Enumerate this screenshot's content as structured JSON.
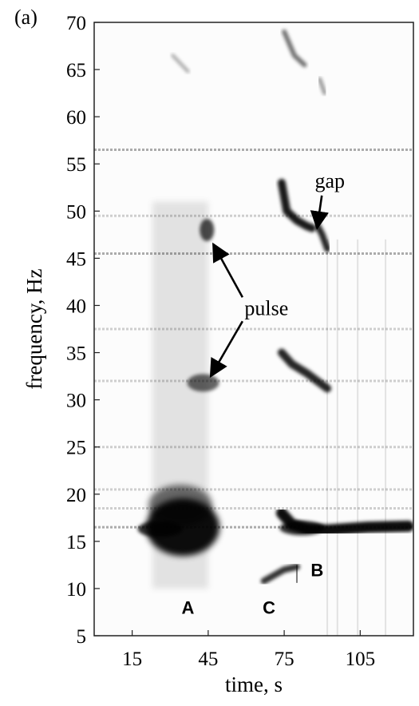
{
  "panel_label": "(a)",
  "chart_data": {
    "type": "heatmap",
    "xlabel": "time, s",
    "ylabel": "frequency, Hz",
    "xlim": [
      0,
      126
    ],
    "ylim": [
      5,
      70
    ],
    "xticks": [
      15,
      45,
      75,
      105
    ],
    "yticks": [
      5,
      10,
      15,
      20,
      25,
      30,
      35,
      40,
      45,
      50,
      55,
      60,
      65,
      70
    ],
    "grid": false,
    "colormap": "grayscale, darker = higher intensity",
    "horizontal_noise_lines_hz": [
      16.5,
      18.5,
      20.5,
      25,
      32,
      37.5,
      45.5,
      49.5,
      56.5
    ],
    "features": [
      {
        "label": "A",
        "label_at": [
          37,
          8
        ],
        "description_type": "broadband harmonic signal",
        "time_range": [
          23,
          45
        ],
        "freq_range": [
          10,
          51
        ],
        "fundamental_hz": 16.5,
        "harmonic_spacing_hz": 1.6
      },
      {
        "label": "B",
        "label_at": [
          88,
          12
        ],
        "description_type": "downswept harmonics",
        "time_range": [
          74,
          92
        ],
        "tracks": [
          {
            "name": "h1",
            "points": [
              [
                74,
                18
              ],
              [
                78,
                16.8
              ],
              [
                84,
                16.3
              ],
              [
                92,
                16.2
              ],
              [
                108,
                16.5
              ],
              [
                124,
                16.6
              ]
            ]
          },
          {
            "name": "h2",
            "points": [
              [
                74,
                35
              ],
              [
                78,
                33.8
              ],
              [
                84,
                32.8
              ],
              [
                88,
                32.0
              ],
              [
                92,
                31.2
              ]
            ]
          },
          {
            "name": "h3",
            "points": [
              [
                74,
                53
              ],
              [
                76,
                50
              ],
              [
                80,
                49
              ],
              [
                84,
                48.4
              ],
              [
                86,
                48.2
              ]
            ]
          },
          {
            "name": "h3b",
            "points": [
              [
                88,
                48.5
              ],
              [
                90,
                47.5
              ],
              [
                92,
                46.0
              ]
            ]
          }
        ]
      },
      {
        "label": "C",
        "label_at": [
          69,
          8
        ],
        "description_type": "short tonal",
        "tracks": [
          {
            "name": "c1",
            "points": [
              [
                67,
                10.8
              ],
              [
                71,
                11.4
              ],
              [
                75,
                12.0
              ],
              [
                80,
                12.3
              ]
            ]
          }
        ]
      },
      {
        "label": "",
        "description_type": "faint upper tonals",
        "tracks": [
          {
            "name": "u1",
            "points": [
              [
                31,
                66.5
              ],
              [
                37,
                64.8
              ]
            ]
          },
          {
            "name": "u2",
            "points": [
              [
                75,
                69
              ],
              [
                79,
                66.5
              ],
              [
                83,
                65.5
              ]
            ]
          },
          {
            "name": "u3",
            "points": [
              [
                89,
                64
              ],
              [
                91,
                62.5
              ]
            ]
          }
        ]
      }
    ],
    "annotations": [
      {
        "text": "gap",
        "text_at": [
          93,
          52.5
        ],
        "arrow_to": [
          88,
          48.2
        ]
      },
      {
        "text": "pulse",
        "text_at": [
          68,
          39
        ],
        "arrow_to": [
          [
            47,
            46.5
          ],
          [
            46,
            32.5
          ]
        ]
      }
    ]
  }
}
